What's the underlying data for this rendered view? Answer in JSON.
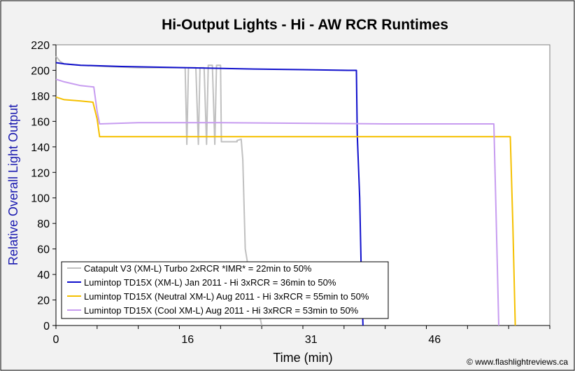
{
  "chart_data": {
    "type": "line",
    "title": "Hi-Output Lights - Hi - AW RCR Runtimes",
    "xlabel": "Time (min)",
    "ylabel": "Relative Overall Light Output",
    "xlim": [
      0,
      60
    ],
    "ylim": [
      0,
      220
    ],
    "xticks": [
      0,
      16,
      31,
      46
    ],
    "xtick_labels": [
      "0",
      "16",
      "31",
      "46"
    ],
    "yticks": [
      0,
      20,
      40,
      60,
      80,
      100,
      120,
      140,
      160,
      180,
      200,
      220
    ],
    "ytick_labels": [
      "0",
      "20",
      "40",
      "60",
      "80",
      "100",
      "120",
      "140",
      "160",
      "180",
      "200",
      "220"
    ],
    "grid": false,
    "legend_position": "bottom-left",
    "watermark": "© www.flashlightreviews.ca",
    "colors": {
      "plot_background": "#ffffff",
      "frame_background": "#f2f2f2",
      "ylabel": "#1a1ab0"
    },
    "series": [
      {
        "name": "Catapult V3 (XM-L) Turbo 2xRCR *IMR* = 22min to 50%",
        "color": "#c0c0c0",
        "points": [
          [
            0,
            211
          ],
          [
            0.5,
            207
          ],
          [
            1,
            205
          ],
          [
            3,
            204
          ],
          [
            6,
            203
          ],
          [
            10,
            202
          ],
          [
            14,
            202
          ],
          [
            15.7,
            202
          ],
          [
            15.9,
            142
          ],
          [
            16.1,
            202
          ],
          [
            17,
            202
          ],
          [
            17.3,
            142
          ],
          [
            17.5,
            202
          ],
          [
            18,
            202
          ],
          [
            18.3,
            142
          ],
          [
            18.5,
            204
          ],
          [
            19,
            204
          ],
          [
            19.3,
            142
          ],
          [
            19.5,
            204
          ],
          [
            20,
            204
          ],
          [
            20.1,
            144
          ],
          [
            22,
            144
          ],
          [
            22,
            145
          ],
          [
            22.5,
            146
          ],
          [
            22.7,
            130
          ],
          [
            23,
            60
          ],
          [
            23.3,
            48
          ],
          [
            24,
            30
          ],
          [
            24.5,
            15
          ],
          [
            25,
            0
          ]
        ]
      },
      {
        "name": "Lumintop TD15X (XM-L) Jan 2011 - Hi 3xRCR = 36min to 50%",
        "color": "#1010cc",
        "points": [
          [
            0,
            206
          ],
          [
            1,
            205
          ],
          [
            3,
            204
          ],
          [
            8,
            203
          ],
          [
            16,
            202
          ],
          [
            24,
            201
          ],
          [
            30,
            200.5
          ],
          [
            35.5,
            200
          ],
          [
            36.5,
            200
          ],
          [
            36.6,
            150
          ],
          [
            36.9,
            100
          ],
          [
            37.1,
            40
          ],
          [
            37.3,
            0
          ]
        ]
      },
      {
        "name": "Lumintop TD15X (Neutral XM-L) Aug 2011 - Hi 3xRCR = 55min to 50%",
        "color": "#f5c000",
        "points": [
          [
            0,
            179
          ],
          [
            1,
            177
          ],
          [
            3,
            176
          ],
          [
            4.5,
            175
          ],
          [
            5,
            162
          ],
          [
            5.3,
            148
          ],
          [
            10,
            148
          ],
          [
            20,
            148
          ],
          [
            30,
            148
          ],
          [
            40,
            148
          ],
          [
            50,
            148
          ],
          [
            55.2,
            148
          ],
          [
            55.5,
            80
          ],
          [
            55.8,
            0
          ]
        ]
      },
      {
        "name": "Lumintop TD15X (Cool XM-L) Aug 2011 - Hi 3xRCR = 53min to 50%",
        "color": "#c79cf0",
        "points": [
          [
            0,
            193
          ],
          [
            1,
            191
          ],
          [
            3,
            188
          ],
          [
            4.6,
            187
          ],
          [
            5.0,
            168
          ],
          [
            5.3,
            158
          ],
          [
            10,
            159
          ],
          [
            20,
            159
          ],
          [
            30,
            158.5
          ],
          [
            40,
            158
          ],
          [
            50,
            158
          ],
          [
            53.2,
            158
          ],
          [
            53.5,
            80
          ],
          [
            53.8,
            0
          ]
        ]
      }
    ]
  }
}
